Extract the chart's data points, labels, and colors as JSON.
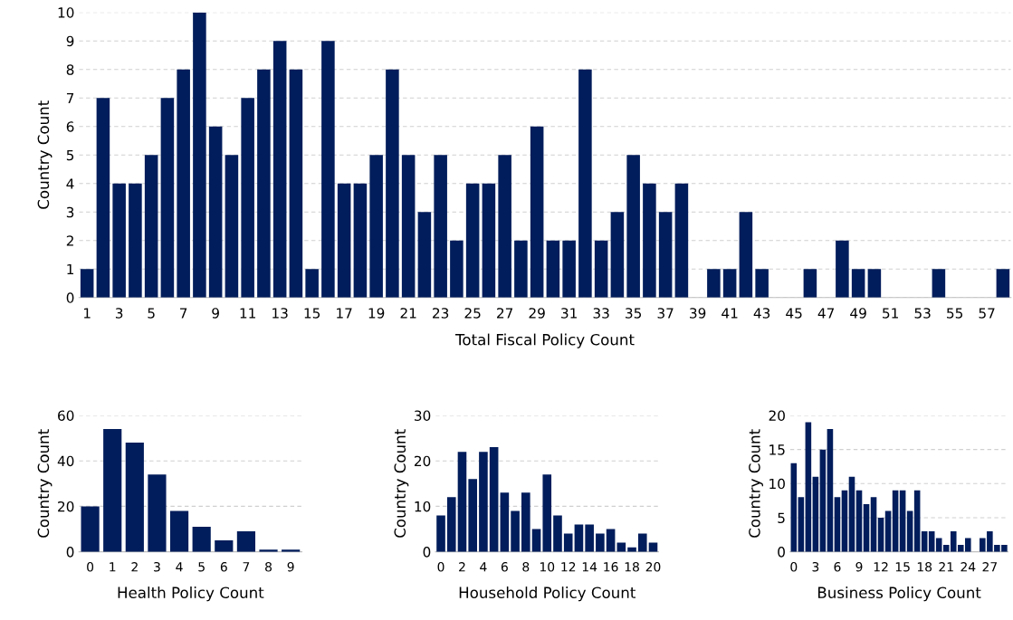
{
  "chart_data": [
    {
      "type": "bar",
      "xlabel": "Total Fiscal Policy Count",
      "ylabel": "Country Count",
      "color": "#021d5b",
      "grid": "y",
      "ylim": [
        0,
        10
      ],
      "yticks": [
        0,
        1,
        2,
        3,
        4,
        5,
        6,
        7,
        8,
        9,
        10
      ],
      "categories": [
        "1",
        null,
        "3",
        null,
        "5",
        null,
        "7",
        null,
        "9",
        null,
        "11",
        null,
        "13",
        null,
        "15",
        null,
        "17",
        null,
        "19",
        null,
        "21",
        null,
        "23",
        null,
        "25",
        null,
        "27",
        null,
        "29",
        null,
        "31",
        null,
        "33",
        null,
        "35",
        null,
        "37",
        null,
        "39",
        null,
        "41",
        null,
        "43",
        null,
        "45",
        null,
        "47",
        null,
        "49",
        null,
        "51",
        null,
        "53",
        null,
        "55",
        null,
        "57",
        null
      ],
      "values": [
        1,
        7,
        4,
        4,
        5,
        7,
        8,
        10,
        6,
        5,
        7,
        8,
        9,
        8,
        1,
        9,
        4,
        4,
        5,
        8,
        5,
        3,
        5,
        2,
        4,
        4,
        5,
        2,
        6,
        2,
        2,
        8,
        2,
        3,
        5,
        4,
        3,
        4,
        0,
        1,
        1,
        3,
        1,
        0,
        0,
        1,
        0,
        2,
        1,
        1,
        0,
        0,
        0,
        1,
        0,
        0,
        0,
        1
      ]
    },
    {
      "type": "bar",
      "xlabel": "Health Policy Count",
      "ylabel": "Country Count",
      "color": "#021d5b",
      "grid": "y",
      "ylim": [
        0,
        60
      ],
      "yticks": [
        0,
        20,
        40,
        60
      ],
      "categories": [
        "0",
        "1",
        "2",
        "3",
        "4",
        "5",
        "6",
        "7",
        "8",
        "9"
      ],
      "values": [
        20,
        54,
        48,
        34,
        18,
        11,
        5,
        9,
        1,
        1
      ]
    },
    {
      "type": "bar",
      "xlabel": "Household Policy Count",
      "ylabel": "Country Count",
      "color": "#021d5b",
      "grid": "y",
      "ylim": [
        0,
        30
      ],
      "yticks": [
        0,
        10,
        20,
        30
      ],
      "categories": [
        "0",
        null,
        "2",
        null,
        "4",
        null,
        "6",
        null,
        "8",
        null,
        "10",
        null,
        "12",
        null,
        "14",
        null,
        "16",
        null,
        "18",
        null,
        "20"
      ],
      "values": [
        8,
        12,
        22,
        16,
        22,
        23,
        13,
        9,
        13,
        5,
        17,
        8,
        4,
        6,
        6,
        4,
        5,
        2,
        1,
        4,
        2
      ]
    },
    {
      "type": "bar",
      "xlabel": "Business Policy Count",
      "ylabel": "Country Count",
      "color": "#021d5b",
      "grid": "y",
      "ylim": [
        0,
        20
      ],
      "yticks": [
        0,
        5,
        10,
        15,
        20
      ],
      "categories": [
        "0",
        null,
        null,
        "3",
        null,
        null,
        "6",
        null,
        null,
        "9",
        null,
        null,
        "12",
        null,
        null,
        "15",
        null,
        null,
        "18",
        null,
        null,
        "21",
        null,
        null,
        "24",
        null,
        null,
        "27",
        null,
        null
      ],
      "values": [
        13,
        8,
        19,
        11,
        15,
        18,
        8,
        9,
        11,
        9,
        7,
        8,
        5,
        6,
        9,
        9,
        6,
        9,
        3,
        3,
        2,
        1,
        3,
        1,
        2,
        0,
        2,
        3,
        1,
        1
      ]
    }
  ]
}
